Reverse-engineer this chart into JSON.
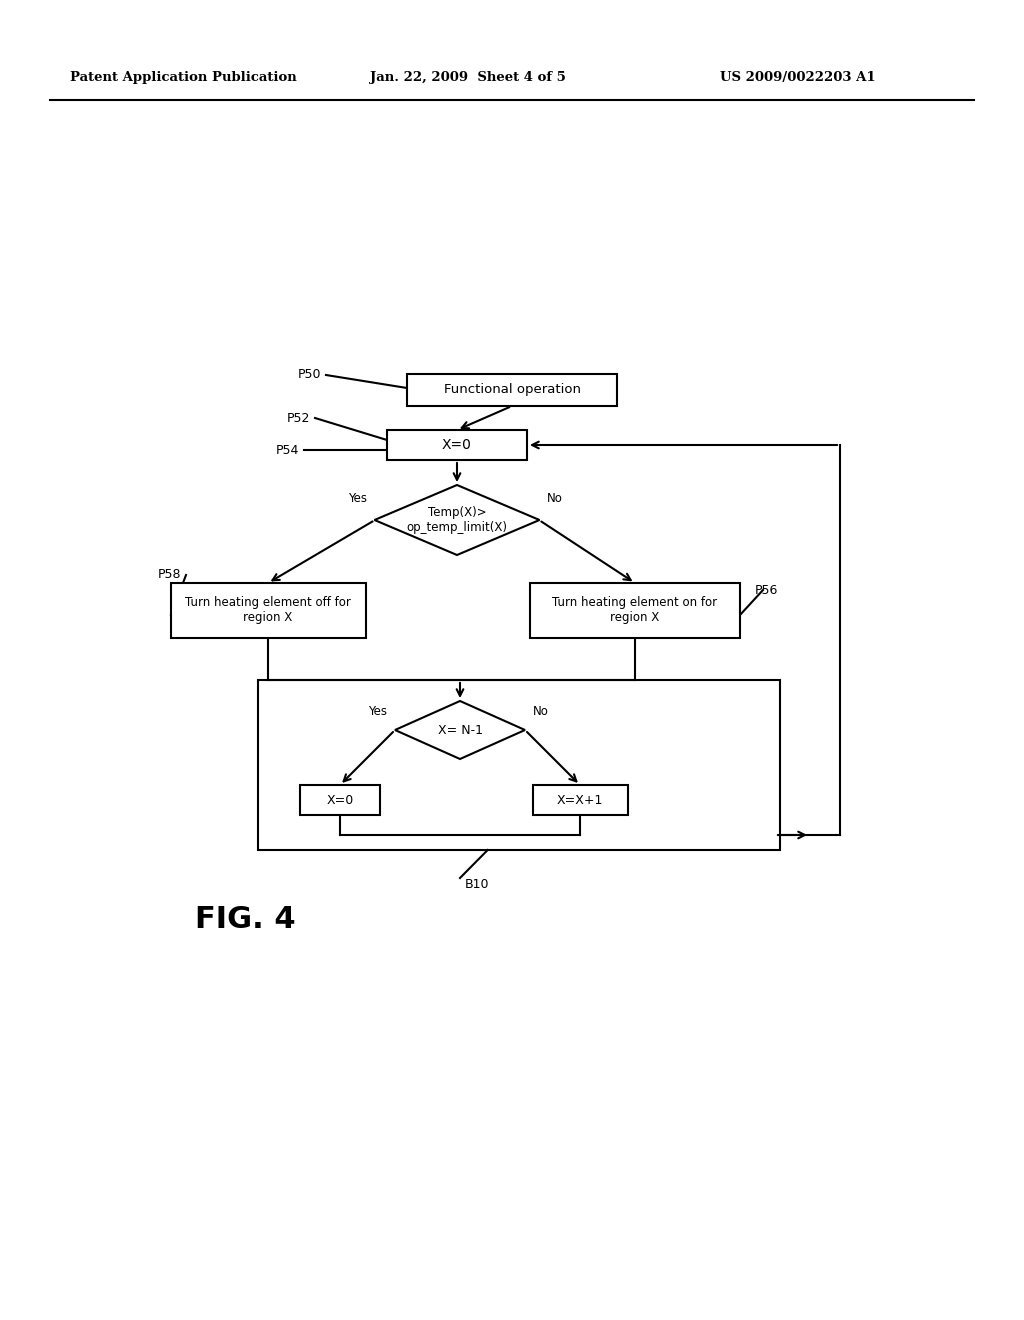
{
  "bg_color": "#ffffff",
  "header_left": "Patent Application Publication",
  "header_mid": "Jan. 22, 2009  Sheet 4 of 5",
  "header_right": "US 2009/0022203 A1",
  "fig_label": "FIG. 4",
  "title_text": "Functional operation",
  "box1_text": "X=0",
  "diamond1_text": "Temp(X)>\nop_temp_limit(X)",
  "box_left_text": "Turn heating element off for\nregion X",
  "box_right_text": "Turn heating element on for\nregion X",
  "diamond2_text": "X= N-1",
  "box_x0_text": "X=0",
  "box_xp1_text": "X=X+1",
  "label_p50": "P50",
  "label_p52": "P52",
  "label_p54": "P54",
  "label_p56": "P56",
  "label_p58": "P58",
  "label_b10": "B10",
  "yes_label": "Yes",
  "no_label": "No",
  "line_color": "#000000",
  "text_color": "#000000",
  "box_fill": "#ffffff",
  "lw": 1.5
}
